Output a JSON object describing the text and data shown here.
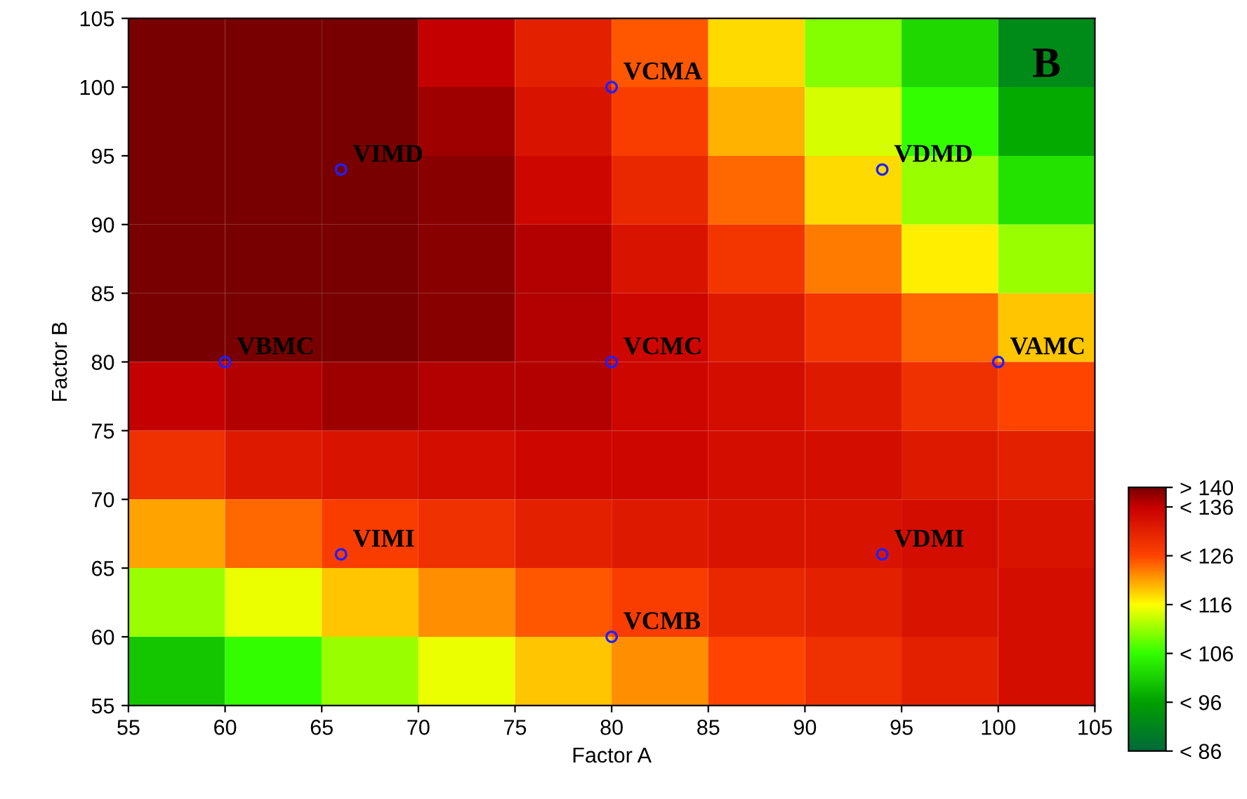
{
  "chart_data": [
    {
      "type": "heatmap",
      "categories": [
        null,
        null,
        null,
        null,
        null,
        null,
        null,
        null,
        null,
        null
      ],
      "y_categories": [
        null,
        null,
        null,
        null,
        null,
        null,
        null,
        null,
        null,
        null
      ],
      "cells": [
        [
          140,
          140,
          140,
          136,
          131,
          125,
          118,
          110,
          102,
          92
        ],
        [
          140,
          140,
          140,
          138,
          133,
          127,
          120,
          114,
          106,
          97
        ],
        [
          140,
          140,
          140,
          139,
          135,
          130,
          124,
          118,
          111,
          103
        ],
        [
          140,
          140,
          140,
          139,
          137,
          133,
          128,
          123,
          117,
          111
        ],
        [
          140,
          140,
          140,
          139,
          137,
          135,
          132,
          128,
          124,
          119
        ],
        [
          136,
          137,
          138,
          137,
          137,
          135,
          134,
          132,
          129,
          126
        ],
        [
          129,
          132,
          133,
          134,
          135,
          135,
          134,
          134,
          132,
          131
        ],
        [
          121,
          124,
          127,
          129,
          131,
          132,
          133,
          133,
          134,
          133
        ],
        [
          111,
          115,
          119,
          122,
          125,
          127,
          130,
          131,
          133,
          134
        ],
        [
          100,
          106,
          111,
          115,
          119,
          122,
          126,
          129,
          131,
          134
        ]
      ],
      "cticks": [
        {
          "value": 86,
          "label": "< 86"
        },
        {
          "value": 96,
          "label": "< 96"
        },
        {
          "value": 106,
          "label": "< 106"
        },
        {
          "value": 116,
          "label": "< 116"
        },
        {
          "value": 126,
          "label": "< 126"
        },
        {
          "value": 136,
          "label": "< 136"
        },
        {
          "value": 140,
          "label": "> 140"
        }
      ],
      "colors": [
        "#006a3a",
        "#00a000",
        "#33ff00",
        "#ffff00",
        "#ff4400",
        "#c80000",
        "#780000"
      ]
    },
    {
      "type": "scatter",
      "xlabel": "Factor A",
      "ylabel": "Factor B",
      "xlim": [
        55,
        105
      ],
      "ylim": [
        55,
        105
      ],
      "xticks": [
        55,
        60,
        65,
        70,
        75,
        80,
        85,
        90,
        95,
        100,
        105
      ],
      "yticks": [
        55,
        60,
        65,
        70,
        75,
        80,
        85,
        90,
        95,
        100,
        105
      ],
      "series": [
        {
          "type": "scatter",
          "color": "#2020ff",
          "marker": "circle",
          "x": [
            60,
            66,
            80,
            94,
            80,
            100,
            66,
            80,
            94
          ],
          "values": [
            80,
            94,
            100,
            94,
            80,
            80,
            66,
            60,
            66
          ]
        }
      ],
      "annotations": [
        {
          "text": "VBMC",
          "x": 60,
          "y": 80
        },
        {
          "text": "VIMD",
          "x": 66,
          "y": 94
        },
        {
          "text": "VCMA",
          "x": 80,
          "y": 100
        },
        {
          "text": "VDMD",
          "x": 94,
          "y": 94
        },
        {
          "text": "VCMC",
          "x": 80,
          "y": 80
        },
        {
          "text": "VAMC",
          "x": 100,
          "y": 80
        },
        {
          "text": "VIMI",
          "x": 66,
          "y": 66
        },
        {
          "text": "VCMB",
          "x": 80,
          "y": 60
        },
        {
          "text": "VDMI",
          "x": 94,
          "y": 66
        },
        "B"
      ]
    }
  ]
}
